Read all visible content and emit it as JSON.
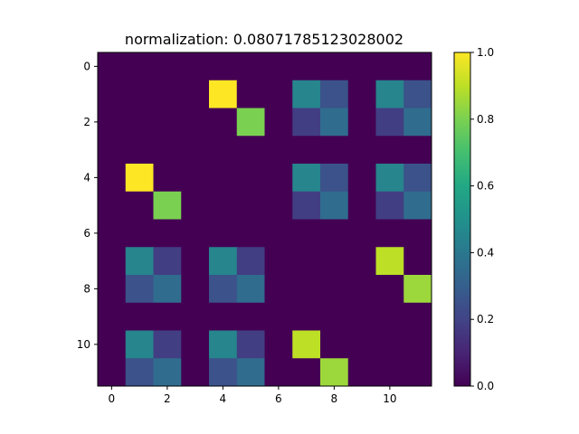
{
  "chart_data": {
    "type": "heatmap",
    "title": "normalization:  0.08071785123028002",
    "xlabel": "",
    "ylabel": "",
    "x_ticks": [
      0,
      2,
      4,
      6,
      8,
      10
    ],
    "y_ticks": [
      0,
      2,
      4,
      6,
      8,
      10
    ],
    "colorbar_ticks": [
      "0.0",
      "0.2",
      "0.4",
      "0.6",
      "0.8",
      "1.0"
    ],
    "colormap": "viridis",
    "vmin": 0.0,
    "vmax": 1.0,
    "grid": false,
    "matrix": [
      [
        0,
        0,
        0,
        0,
        0,
        0,
        0,
        0,
        0,
        0,
        0,
        0
      ],
      [
        0,
        0,
        0,
        0,
        1.0,
        0,
        0,
        0.45,
        0.25,
        0,
        0.45,
        0.25
      ],
      [
        0,
        0,
        0,
        0,
        0,
        0.8,
        0,
        0.18,
        0.35,
        0,
        0.18,
        0.35
      ],
      [
        0,
        0,
        0,
        0,
        0,
        0,
        0,
        0,
        0,
        0,
        0,
        0
      ],
      [
        0,
        1.0,
        0,
        0,
        0,
        0,
        0,
        0.45,
        0.25,
        0,
        0.45,
        0.25
      ],
      [
        0,
        0,
        0.8,
        0,
        0,
        0,
        0,
        0.18,
        0.35,
        0,
        0.18,
        0.35
      ],
      [
        0,
        0,
        0,
        0,
        0,
        0,
        0,
        0,
        0,
        0,
        0,
        0
      ],
      [
        0,
        0.45,
        0.18,
        0,
        0.45,
        0.18,
        0,
        0,
        0,
        0,
        0.9,
        0
      ],
      [
        0,
        0.25,
        0.35,
        0,
        0.25,
        0.35,
        0,
        0,
        0,
        0,
        0,
        0.85
      ],
      [
        0,
        0,
        0,
        0,
        0,
        0,
        0,
        0,
        0,
        0,
        0,
        0
      ],
      [
        0,
        0.45,
        0.18,
        0,
        0.45,
        0.18,
        0,
        0.9,
        0,
        0,
        0,
        0
      ],
      [
        0,
        0.25,
        0.35,
        0,
        0.25,
        0.35,
        0,
        0,
        0.85,
        0,
        0,
        0
      ]
    ]
  }
}
